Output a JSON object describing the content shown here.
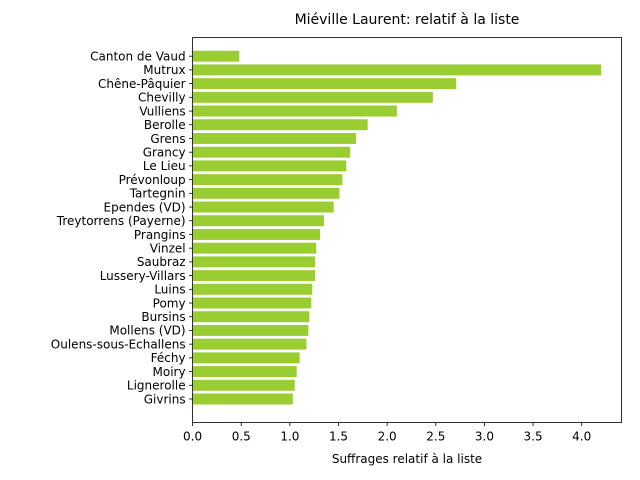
{
  "chart_data": {
    "type": "bar",
    "orientation": "horizontal",
    "title": "Miéville Laurent: relatif à la liste",
    "xlabel": "Suffrages relatif à la liste",
    "ylabel": "",
    "xlim": [
      0,
      4.41
    ],
    "xticks": [
      0.0,
      0.5,
      1.0,
      1.5,
      2.0,
      2.5,
      3.0,
      3.5,
      4.0
    ],
    "xtick_labels": [
      "0.0",
      "0.5",
      "1.0",
      "1.5",
      "2.0",
      "2.5",
      "3.0",
      "3.5",
      "4.0"
    ],
    "grid": false,
    "bar_color": "#9acd32",
    "categories": [
      "Canton de Vaud",
      "Mutrux",
      "Chêne-Pâquier",
      "Chevilly",
      "Vulliens",
      "Berolle",
      "Grens",
      "Grancy",
      "Le Lieu",
      "Prévonloup",
      "Tartegnin",
      "Ependes (VD)",
      "Treytorrens (Payerne)",
      "Prangins",
      "Vinzel",
      "Saubraz",
      "Lussery-Villars",
      "Luins",
      "Pomy",
      "Bursins",
      "Mollens (VD)",
      "Oulens-sous-Echallens",
      "Féchy",
      "Moiry",
      "Lignerolle",
      "Givrins"
    ],
    "values": [
      0.48,
      4.2,
      2.71,
      2.47,
      2.1,
      1.8,
      1.68,
      1.62,
      1.58,
      1.54,
      1.51,
      1.45,
      1.35,
      1.31,
      1.27,
      1.26,
      1.26,
      1.23,
      1.22,
      1.2,
      1.19,
      1.17,
      1.1,
      1.07,
      1.05,
      1.03
    ]
  }
}
